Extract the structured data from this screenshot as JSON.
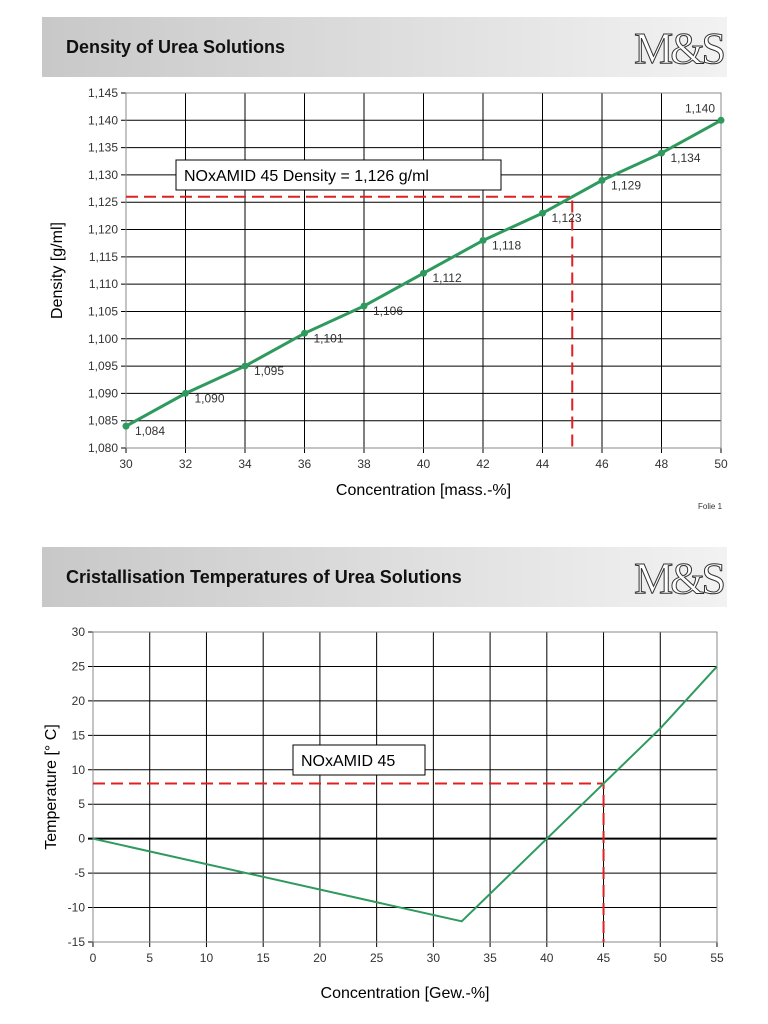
{
  "folie": "Folie 1",
  "logo": "M&S",
  "chart_data": [
    {
      "type": "line",
      "title": "Density of Urea Solutions",
      "xlabel": "Concentration [mass.-%]",
      "ylabel": "Density [g/ml]",
      "xlim": [
        30,
        50
      ],
      "ylim": [
        1.08,
        1.145
      ],
      "xticks": [
        "30",
        "32",
        "34",
        "36",
        "38",
        "40",
        "42",
        "44",
        "46",
        "48",
        "50"
      ],
      "yticks": [
        "1,080",
        "1,085",
        "1,090",
        "1,095",
        "1,100",
        "1,105",
        "1,110",
        "1,115",
        "1,120",
        "1,125",
        "1,130",
        "1,135",
        "1,140",
        "1,145"
      ],
      "grid": true,
      "line_color": "#2e9a5e",
      "marker_line": "#e02020",
      "x": [
        30,
        32,
        34,
        36,
        38,
        40,
        42,
        44,
        46,
        48,
        50
      ],
      "y": [
        1.084,
        1.09,
        1.095,
        1.101,
        1.106,
        1.112,
        1.118,
        1.123,
        1.129,
        1.134,
        1.14
      ],
      "labels": [
        "1,084",
        "1,090",
        "1,095",
        "1,101",
        "1,106",
        "1,112",
        "1,118",
        "1,123",
        "1,129",
        "1,134",
        "1,140"
      ],
      "marker": {
        "x": 45,
        "y": 1.126
      },
      "annotation": "NOxAMID 45  Density = 1,126 g/ml"
    },
    {
      "type": "line",
      "title": "Cristallisation Temperatures of Urea Solutions",
      "xlabel": "Concentration [Gew.-%]",
      "ylabel": "Temperature [° C]",
      "xlim": [
        0,
        55
      ],
      "ylim": [
        -15,
        30
      ],
      "xticks": [
        "0",
        "5",
        "10",
        "15",
        "20",
        "25",
        "30",
        "35",
        "40",
        "45",
        "50",
        "55"
      ],
      "yticks": [
        "-15",
        "-10",
        "-5",
        "0",
        "5",
        "10",
        "15",
        "20",
        "25",
        "30"
      ],
      "grid": true,
      "line_color": "#2e9a5e",
      "marker_line": "#e02020",
      "x": [
        0,
        32.5,
        40,
        45,
        50,
        55
      ],
      "y": [
        0,
        -12,
        0,
        8,
        16,
        25
      ],
      "marker": {
        "x": 45,
        "y": 8
      },
      "annotation": "NOxAMID 45"
    }
  ]
}
